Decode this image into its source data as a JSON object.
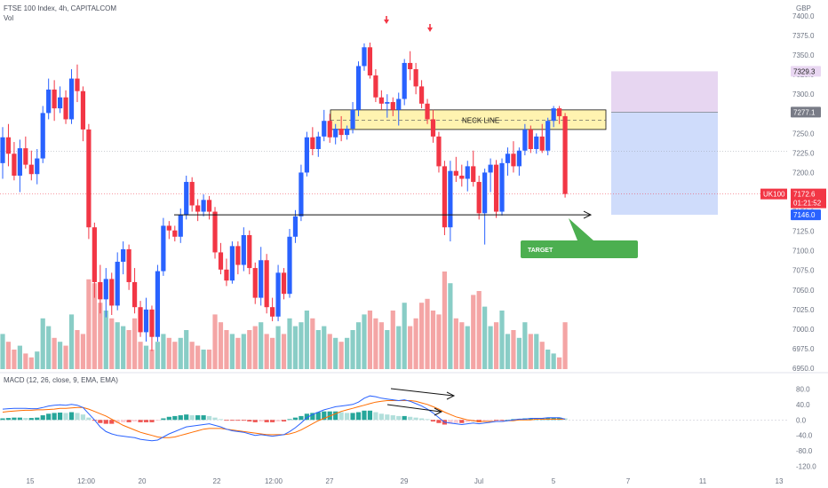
{
  "header": {
    "title": "FTSE 100 Index, 4h, CAPITALCOM",
    "volume_label": "Vol",
    "macd_label": "MACD (12, 26, close, 9, EMA, EMA)",
    "currency": "GBP"
  },
  "chart_data": [
    {
      "type": "candlestick",
      "price_axis": {
        "ticks": [
          "7400.0",
          "7375.0",
          "7350.0",
          "7325.0",
          "7300.0",
          "7275.0",
          "7250.0",
          "7225.0",
          "7200.0",
          "7175.0",
          "7150.0",
          "7125.0",
          "7100.0",
          "7075.0",
          "7050.0",
          "7025.0",
          "7000.0",
          "6975.0",
          "6950.0"
        ],
        "ylim": [
          6950,
          7400
        ]
      },
      "time_axis": [
        "15",
        "12:00",
        "20",
        "22",
        "12:00",
        "27",
        "29",
        "Jul",
        "5",
        "7",
        "11",
        "13"
      ],
      "price_labels": {
        "take_profit": "7329.3",
        "entry": "7277.1",
        "symbol": "UK100",
        "last": "7172.6",
        "countdown": "01:21:52",
        "stop_or_target": "7146.0"
      },
      "annotations": {
        "neckline": "NECK LINE",
        "target": "TARGET"
      },
      "candles": [
        {
          "o": 7212,
          "h": 7258,
          "l": 7192,
          "c": 7245
        },
        {
          "o": 7245,
          "h": 7262,
          "l": 7208,
          "c": 7224
        },
        {
          "o": 7224,
          "h": 7239,
          "l": 7190,
          "c": 7196
        },
        {
          "o": 7196,
          "h": 7242,
          "l": 7175,
          "c": 7231
        },
        {
          "o": 7231,
          "h": 7246,
          "l": 7205,
          "c": 7210
        },
        {
          "o": 7210,
          "h": 7228,
          "l": 7190,
          "c": 7198
        },
        {
          "o": 7198,
          "h": 7230,
          "l": 7185,
          "c": 7218
        },
        {
          "o": 7218,
          "h": 7285,
          "l": 7212,
          "c": 7276
        },
        {
          "o": 7276,
          "h": 7320,
          "l": 7268,
          "c": 7306
        },
        {
          "o": 7306,
          "h": 7318,
          "l": 7266,
          "c": 7282
        },
        {
          "o": 7282,
          "h": 7310,
          "l": 7276,
          "c": 7296
        },
        {
          "o": 7296,
          "h": 7305,
          "l": 7262,
          "c": 7268
        },
        {
          "o": 7268,
          "h": 7332,
          "l": 7262,
          "c": 7320
        },
        {
          "o": 7320,
          "h": 7338,
          "l": 7290,
          "c": 7304
        },
        {
          "o": 7304,
          "h": 7310,
          "l": 7240,
          "c": 7255
        },
        {
          "o": 7255,
          "h": 7262,
          "l": 7115,
          "c": 7130
        },
        {
          "o": 7130,
          "h": 7136,
          "l": 7040,
          "c": 7060
        },
        {
          "o": 7060,
          "h": 7082,
          "l": 7020,
          "c": 7038
        },
        {
          "o": 7038,
          "h": 7078,
          "l": 7015,
          "c": 7064
        },
        {
          "o": 7064,
          "h": 7072,
          "l": 7018,
          "c": 7030
        },
        {
          "o": 7030,
          "h": 7098,
          "l": 7024,
          "c": 7086
        },
        {
          "o": 7086,
          "h": 7112,
          "l": 7070,
          "c": 7102
        },
        {
          "o": 7102,
          "h": 7108,
          "l": 7050,
          "c": 7060
        },
        {
          "o": 7060,
          "h": 7078,
          "l": 7020,
          "c": 7028
        },
        {
          "o": 7028,
          "h": 7036,
          "l": 6990,
          "c": 6996
        },
        {
          "o": 6996,
          "h": 7040,
          "l": 6984,
          "c": 7025
        },
        {
          "o": 7025,
          "h": 7030,
          "l": 6972,
          "c": 6990
        },
        {
          "o": 6990,
          "h": 7082,
          "l": 6984,
          "c": 7074
        },
        {
          "o": 7074,
          "h": 7142,
          "l": 7068,
          "c": 7132
        },
        {
          "o": 7132,
          "h": 7138,
          "l": 7115,
          "c": 7126
        },
        {
          "o": 7126,
          "h": 7132,
          "l": 7112,
          "c": 7118
        },
        {
          "o": 7118,
          "h": 7154,
          "l": 7110,
          "c": 7146
        },
        {
          "o": 7146,
          "h": 7196,
          "l": 7140,
          "c": 7188
        },
        {
          "o": 7188,
          "h": 7194,
          "l": 7150,
          "c": 7158
        },
        {
          "o": 7158,
          "h": 7166,
          "l": 7138,
          "c": 7150
        },
        {
          "o": 7150,
          "h": 7172,
          "l": 7144,
          "c": 7165
        },
        {
          "o": 7165,
          "h": 7170,
          "l": 7140,
          "c": 7150
        },
        {
          "o": 7150,
          "h": 7156,
          "l": 7090,
          "c": 7098
        },
        {
          "o": 7098,
          "h": 7110,
          "l": 7070,
          "c": 7076
        },
        {
          "o": 7076,
          "h": 7090,
          "l": 7055,
          "c": 7062
        },
        {
          "o": 7062,
          "h": 7112,
          "l": 7058,
          "c": 7106
        },
        {
          "o": 7106,
          "h": 7112,
          "l": 7070,
          "c": 7082
        },
        {
          "o": 7082,
          "h": 7130,
          "l": 7074,
          "c": 7120
        },
        {
          "o": 7120,
          "h": 7126,
          "l": 7070,
          "c": 7078
        },
        {
          "o": 7078,
          "h": 7085,
          "l": 7032,
          "c": 7040
        },
        {
          "o": 7040,
          "h": 7105,
          "l": 7030,
          "c": 7088
        },
        {
          "o": 7088,
          "h": 7096,
          "l": 7020,
          "c": 7028
        },
        {
          "o": 7028,
          "h": 7040,
          "l": 7010,
          "c": 7016
        },
        {
          "o": 7016,
          "h": 7082,
          "l": 7010,
          "c": 7072
        },
        {
          "o": 7072,
          "h": 7078,
          "l": 7038,
          "c": 7045
        },
        {
          "o": 7045,
          "h": 7128,
          "l": 7040,
          "c": 7118
        },
        {
          "o": 7118,
          "h": 7152,
          "l": 7110,
          "c": 7144
        },
        {
          "o": 7144,
          "h": 7210,
          "l": 7138,
          "c": 7200
        },
        {
          "o": 7200,
          "h": 7252,
          "l": 7195,
          "c": 7245
        },
        {
          "o": 7245,
          "h": 7258,
          "l": 7222,
          "c": 7230
        },
        {
          "o": 7230,
          "h": 7252,
          "l": 7220,
          "c": 7246
        },
        {
          "o": 7246,
          "h": 7280,
          "l": 7240,
          "c": 7266
        },
        {
          "o": 7266,
          "h": 7275,
          "l": 7238,
          "c": 7245
        },
        {
          "o": 7245,
          "h": 7262,
          "l": 7236,
          "c": 7256
        },
        {
          "o": 7256,
          "h": 7272,
          "l": 7240,
          "c": 7248
        },
        {
          "o": 7248,
          "h": 7260,
          "l": 7242,
          "c": 7256
        },
        {
          "o": 7256,
          "h": 7290,
          "l": 7250,
          "c": 7280
        },
        {
          "o": 7280,
          "h": 7342,
          "l": 7272,
          "c": 7336
        },
        {
          "o": 7336,
          "h": 7365,
          "l": 7330,
          "c": 7360
        },
        {
          "o": 7360,
          "h": 7366,
          "l": 7320,
          "c": 7324
        },
        {
          "o": 7324,
          "h": 7332,
          "l": 7290,
          "c": 7296
        },
        {
          "o": 7296,
          "h": 7305,
          "l": 7280,
          "c": 7288
        },
        {
          "o": 7288,
          "h": 7300,
          "l": 7270,
          "c": 7290
        },
        {
          "o": 7290,
          "h": 7296,
          "l": 7272,
          "c": 7280
        },
        {
          "o": 7280,
          "h": 7302,
          "l": 7260,
          "c": 7294
        },
        {
          "o": 7294,
          "h": 7345,
          "l": 7286,
          "c": 7340
        },
        {
          "o": 7340,
          "h": 7355,
          "l": 7318,
          "c": 7332
        },
        {
          "o": 7332,
          "h": 7340,
          "l": 7300,
          "c": 7310
        },
        {
          "o": 7310,
          "h": 7318,
          "l": 7282,
          "c": 7288
        },
        {
          "o": 7288,
          "h": 7294,
          "l": 7262,
          "c": 7268
        },
        {
          "o": 7268,
          "h": 7280,
          "l": 7238,
          "c": 7246
        },
        {
          "o": 7246,
          "h": 7252,
          "l": 7200,
          "c": 7208
        },
        {
          "o": 7208,
          "h": 7215,
          "l": 7120,
          "c": 7130
        },
        {
          "o": 7130,
          "h": 7215,
          "l": 7112,
          "c": 7202
        },
        {
          "o": 7202,
          "h": 7220,
          "l": 7188,
          "c": 7196
        },
        {
          "o": 7196,
          "h": 7210,
          "l": 7182,
          "c": 7192
        },
        {
          "o": 7192,
          "h": 7215,
          "l": 7176,
          "c": 7208
        },
        {
          "o": 7208,
          "h": 7228,
          "l": 7182,
          "c": 7188
        },
        {
          "o": 7188,
          "h": 7196,
          "l": 7140,
          "c": 7148
        },
        {
          "o": 7148,
          "h": 7205,
          "l": 7108,
          "c": 7200
        },
        {
          "o": 7200,
          "h": 7218,
          "l": 7175,
          "c": 7210
        },
        {
          "o": 7210,
          "h": 7216,
          "l": 7142,
          "c": 7150
        },
        {
          "o": 7150,
          "h": 7218,
          "l": 7145,
          "c": 7212
        },
        {
          "o": 7212,
          "h": 7232,
          "l": 7196,
          "c": 7224
        },
        {
          "o": 7224,
          "h": 7240,
          "l": 7200,
          "c": 7208
        },
        {
          "o": 7208,
          "h": 7232,
          "l": 7196,
          "c": 7228
        },
        {
          "o": 7228,
          "h": 7262,
          "l": 7222,
          "c": 7255
        },
        {
          "o": 7255,
          "h": 7260,
          "l": 7225,
          "c": 7230
        },
        {
          "o": 7230,
          "h": 7250,
          "l": 7224,
          "c": 7246
        },
        {
          "o": 7246,
          "h": 7262,
          "l": 7225,
          "c": 7228
        },
        {
          "o": 7228,
          "h": 7270,
          "l": 7222,
          "c": 7266
        },
        {
          "o": 7266,
          "h": 7285,
          "l": 7258,
          "c": 7282
        },
        {
          "o": 7282,
          "h": 7285,
          "l": 7262,
          "c": 7272
        },
        {
          "o": 7272,
          "h": 7276,
          "l": 7168,
          "c": 7172.6
        }
      ],
      "volume": [
        18,
        14,
        10,
        12,
        8,
        6,
        9,
        26,
        22,
        16,
        14,
        12,
        28,
        20,
        18,
        46,
        44,
        34,
        30,
        26,
        24,
        22,
        20,
        26,
        14,
        12,
        10,
        14,
        18,
        16,
        14,
        16,
        20,
        14,
        12,
        10,
        10,
        28,
        24,
        20,
        18,
        16,
        18,
        20,
        22,
        24,
        18,
        16,
        22,
        18,
        26,
        22,
        24,
        30,
        26,
        20,
        22,
        18,
        16,
        14,
        16,
        20,
        24,
        28,
        30,
        26,
        24,
        20,
        30,
        22,
        34,
        22,
        26,
        34,
        36,
        30,
        28,
        50,
        44,
        26,
        24,
        22,
        38,
        40,
        32,
        22,
        24,
        30,
        18,
        20,
        16,
        24,
        18,
        18,
        14,
        10,
        8,
        6,
        24
      ],
      "macd": {
        "ticks": [
          "80.0",
          "40.0",
          "0.0",
          "-40.0",
          "-80.0",
          "-120.0"
        ],
        "ylim": [
          -130,
          90
        ],
        "histogram": [
          4,
          5,
          6,
          6,
          5,
          5,
          6,
          12,
          16,
          18,
          19,
          18,
          20,
          18,
          14,
          6,
          -2,
          -8,
          -10,
          -10,
          -8,
          -6,
          -6,
          -4,
          -6,
          -6,
          -6,
          -2,
          4,
          8,
          10,
          12,
          14,
          12,
          12,
          12,
          10,
          6,
          2,
          -2,
          -2,
          -2,
          -2,
          -4,
          -6,
          -4,
          -6,
          -6,
          -4,
          -4,
          2,
          6,
          10,
          16,
          18,
          20,
          22,
          22,
          22,
          20,
          18,
          18,
          20,
          24,
          24,
          20,
          16,
          14,
          12,
          10,
          10,
          8,
          6,
          4,
          2,
          -4,
          -8,
          -12,
          -10,
          -8,
          -8,
          -6,
          -4,
          -6,
          -4,
          -2,
          -2,
          -2,
          0,
          2,
          2,
          4,
          4,
          4,
          4,
          6,
          6,
          6,
          4
        ],
        "macd_line": [
          28,
          29,
          30,
          30,
          30,
          29,
          29,
          32,
          36,
          38,
          39,
          38,
          40,
          38,
          32,
          16,
          0,
          -18,
          -30,
          -36,
          -40,
          -42,
          -44,
          -46,
          -50,
          -52,
          -54,
          -52,
          -44,
          -36,
          -30,
          -24,
          -18,
          -16,
          -14,
          -12,
          -10,
          -14,
          -18,
          -24,
          -28,
          -30,
          -32,
          -36,
          -40,
          -38,
          -40,
          -42,
          -40,
          -38,
          -30,
          -20,
          -8,
          6,
          14,
          20,
          26,
          30,
          34,
          36,
          38,
          40,
          46,
          56,
          62,
          60,
          56,
          54,
          52,
          50,
          52,
          48,
          42,
          36,
          28,
          18,
          6,
          -6,
          -8,
          -10,
          -12,
          -10,
          -8,
          -10,
          -8,
          -6,
          -4,
          -4,
          -2,
          0,
          2,
          2,
          4,
          4,
          4,
          6,
          6,
          6,
          2
        ],
        "signal_line": [
          20,
          22,
          23,
          24,
          25,
          25,
          26,
          26,
          27,
          28,
          30,
          30,
          31,
          32,
          32,
          28,
          22,
          16,
          10,
          2,
          -6,
          -14,
          -20,
          -26,
          -32,
          -36,
          -40,
          -44,
          -46,
          -46,
          -44,
          -40,
          -36,
          -32,
          -28,
          -24,
          -22,
          -22,
          -22,
          -24,
          -26,
          -28,
          -30,
          -32,
          -34,
          -36,
          -38,
          -38,
          -38,
          -38,
          -36,
          -32,
          -26,
          -18,
          -10,
          -2,
          4,
          10,
          16,
          22,
          26,
          30,
          34,
          38,
          42,
          46,
          48,
          50,
          50,
          50,
          50,
          50,
          48,
          44,
          40,
          34,
          28,
          20,
          14,
          8,
          4,
          0,
          -2,
          -4,
          -4,
          -4,
          -4,
          -4,
          -2,
          -2,
          0,
          0,
          0,
          2,
          2,
          2,
          2,
          2,
          2
        ]
      }
    }
  ],
  "colors": {
    "up": "#2962ff",
    "down": "#f23645",
    "vol_up": "#89cdc6",
    "vol_down": "#f4a5a5",
    "hist_up_strong": "#26a69a",
    "hist_up_weak": "#b2dfdb",
    "hist_down_strong": "#ef5350",
    "hist_down_weak": "#ffcdd2",
    "macd_line": "#2962ff",
    "signal_line": "#ff6d00",
    "neckline_zone": "#fff3b0",
    "profit_zone": "#e7d6f1",
    "loss_zone": "#cfdcfb",
    "target_box": "#4caf50",
    "axis_text": "#6b7280"
  }
}
